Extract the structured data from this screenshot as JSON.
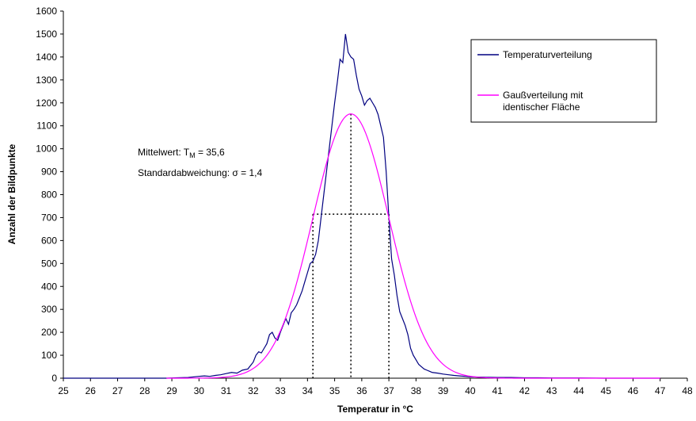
{
  "chart_data": {
    "type": "line",
    "title": "",
    "xlabel": "Temperatur in °C",
    "ylabel": "Anzahl der Bildpunkte",
    "xlim": [
      25,
      48
    ],
    "ylim": [
      0,
      1600
    ],
    "x_ticks": [
      25,
      26,
      27,
      28,
      29,
      30,
      31,
      32,
      33,
      34,
      35,
      36,
      37,
      38,
      39,
      40,
      41,
      42,
      43,
      44,
      45,
      46,
      47,
      48
    ],
    "y_ticks": [
      0,
      100,
      200,
      300,
      400,
      500,
      600,
      700,
      800,
      900,
      1000,
      1100,
      1200,
      1300,
      1400,
      1500,
      1600
    ],
    "grid": false,
    "legend_position": "top-right",
    "annotations": {
      "mean_prefix": "Mittelwert: T",
      "mean_sub": "M",
      "mean_suffix": " = 35,6",
      "std_text": "Standardabweichung: σ = 1,4",
      "mean_value": 35.6,
      "std_value": 1.4,
      "marker_low": 34.2,
      "marker_high": 37.0,
      "marker_level": 715,
      "peak_value": 1152
    },
    "series": [
      {
        "name": "Temperaturverteilung",
        "color": "#000080",
        "x": [
          25,
          26,
          27,
          28,
          28.8,
          29.2,
          29.6,
          30,
          30.2,
          30.4,
          30.6,
          30.8,
          31,
          31.2,
          31.4,
          31.6,
          31.8,
          32,
          32.1,
          32.2,
          32.3,
          32.4,
          32.5,
          32.6,
          32.7,
          32.8,
          32.9,
          33,
          33.1,
          33.2,
          33.3,
          33.4,
          33.5,
          33.6,
          33.7,
          33.8,
          33.9,
          34,
          34.1,
          34.2,
          34.3,
          34.4,
          34.5,
          34.6,
          34.7,
          34.8,
          34.9,
          35,
          35.1,
          35.2,
          35.3,
          35.4,
          35.5,
          35.6,
          35.7,
          35.8,
          35.9,
          36,
          36.1,
          36.2,
          36.3,
          36.4,
          36.5,
          36.6,
          36.7,
          36.8,
          36.9,
          37,
          37.1,
          37.2,
          37.3,
          37.4,
          37.5,
          37.6,
          37.7,
          37.8,
          37.9,
          38,
          38.1,
          38.2,
          38.3,
          38.4,
          38.5,
          38.6,
          38.8,
          39,
          39.2,
          39.4,
          39.6,
          39.8,
          40,
          40.3,
          40.6,
          41,
          41.5,
          42,
          42.5,
          43,
          44,
          45,
          46,
          47
        ],
        "values": [
          0,
          0,
          0,
          0,
          0,
          2,
          3,
          8,
          10,
          8,
          12,
          15,
          20,
          25,
          22,
          35,
          40,
          70,
          100,
          115,
          110,
          130,
          150,
          190,
          200,
          175,
          165,
          200,
          230,
          260,
          235,
          285,
          300,
          320,
          350,
          380,
          420,
          460,
          500,
          510,
          540,
          600,
          700,
          800,
          900,
          1000,
          1100,
          1200,
          1290,
          1390,
          1375,
          1500,
          1420,
          1400,
          1390,
          1320,
          1260,
          1230,
          1190,
          1210,
          1220,
          1200,
          1180,
          1150,
          1100,
          1050,
          900,
          700,
          520,
          450,
          360,
          290,
          260,
          230,
          190,
          130,
          100,
          80,
          60,
          50,
          40,
          35,
          30,
          25,
          22,
          18,
          15,
          12,
          10,
          8,
          6,
          5,
          4,
          3,
          3,
          2,
          2,
          1,
          1,
          0,
          0,
          0
        ]
      },
      {
        "name": "Gaußverteilung mit identischer Fläche",
        "name_line1": "Gaußverteilung mit",
        "name_line2": "identischer Fläche",
        "color": "#ff00ff",
        "mean": 35.6,
        "std": 1.4,
        "peak": 1152,
        "x_range": [
          28.8,
          47
        ]
      }
    ]
  }
}
